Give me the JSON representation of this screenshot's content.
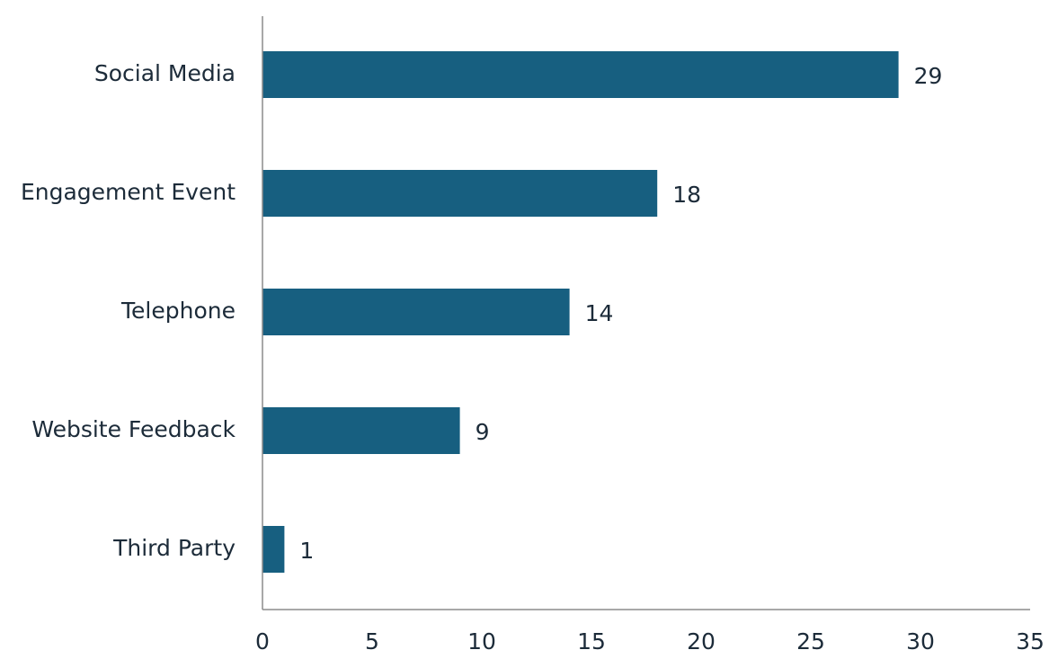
{
  "chart_data": {
    "type": "bar",
    "orientation": "horizontal",
    "categories": [
      "Social Media",
      "Engagement Event",
      "Telephone",
      "Website Feedback",
      "Third Party"
    ],
    "values": [
      29,
      18,
      14,
      9,
      1
    ],
    "title": "",
    "xlabel": "",
    "ylabel": "",
    "xlim": [
      0,
      35
    ],
    "xticks": [
      0,
      5,
      10,
      15,
      20,
      25,
      30,
      35
    ],
    "xtick_labels": [
      "0",
      "5",
      "10",
      "15",
      "20",
      "25",
      "30",
      "35"
    ],
    "data_labels": [
      "29",
      "18",
      "14",
      "9",
      "1"
    ],
    "grid": false,
    "legend": "none",
    "colors": {
      "bar": "#175f80",
      "axis": "#8c8c8c",
      "text": "#1c2b39"
    }
  }
}
